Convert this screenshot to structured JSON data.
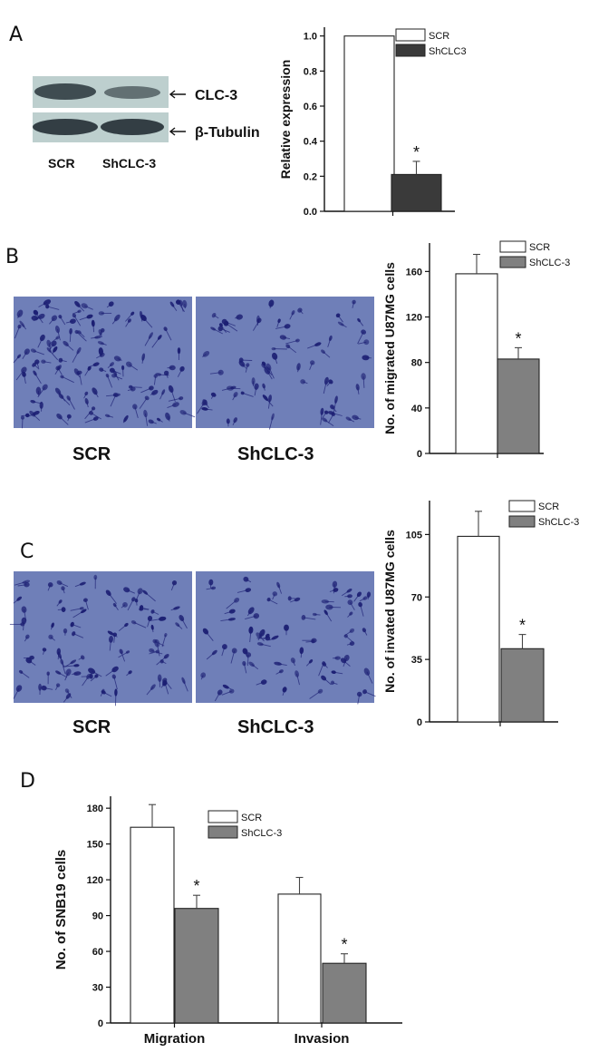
{
  "panel_letters": {
    "a": "A",
    "b": "B",
    "c": "C",
    "d": "D"
  },
  "blot": {
    "band_labels": [
      "CLC-3",
      "β-Tubulin"
    ],
    "lane_labels": [
      "SCR",
      "ShCLC-3"
    ],
    "arrow_glyph": "←"
  },
  "micrographs": {
    "labels": [
      "SCR",
      "ShCLC-3"
    ],
    "bg_color": "#6f7fb8",
    "cell_color": "#1c1f73"
  },
  "significance_marker": "*",
  "colors": {
    "scr": "#ffffff",
    "sh_a": "#3a3a3a",
    "sh": "#808080",
    "axis": "#111111"
  },
  "chart_data": [
    {
      "id": "A",
      "type": "bar",
      "categories": [
        "SCR",
        "ShCLC3"
      ],
      "values": [
        1.0,
        0.21
      ],
      "errors": [
        0,
        0.075
      ],
      "significant": [
        false,
        true
      ],
      "legend": [
        "SCR",
        "ShCLC3"
      ],
      "xlabel": "",
      "ylabel": "Relative expression",
      "ylim": [
        0,
        1.05
      ],
      "yticks": [
        "0.0",
        "0.2",
        "0.4",
        "0.6",
        "0.8",
        "1.0"
      ],
      "legend_position": "top-right"
    },
    {
      "id": "B",
      "type": "bar",
      "categories": [
        "SCR",
        "ShCLC-3"
      ],
      "values": [
        158,
        83
      ],
      "errors": [
        17,
        10
      ],
      "significant": [
        false,
        true
      ],
      "legend": [
        "SCR",
        "ShCLC-3"
      ],
      "xlabel": "",
      "ylabel": "No. of  migrated U87MG cells",
      "ylim": [
        0,
        185
      ],
      "yticks": [
        "0",
        "40",
        "80",
        "120",
        "160"
      ],
      "legend_position": "top-right"
    },
    {
      "id": "C",
      "type": "bar",
      "categories": [
        "SCR",
        "ShCLC-3"
      ],
      "values": [
        104,
        41
      ],
      "errors": [
        14,
        8
      ],
      "significant": [
        false,
        true
      ],
      "legend": [
        "SCR",
        "ShCLC-3"
      ],
      "xlabel": "",
      "ylabel": "No. of  invated U87MG cells",
      "ylim": [
        0,
        124
      ],
      "yticks": [
        "0",
        "35",
        "70",
        "105"
      ],
      "legend_position": "top-right"
    },
    {
      "id": "D",
      "type": "bar",
      "categories": [
        "Migration",
        "Invasion"
      ],
      "series": [
        {
          "name": "SCR",
          "values": [
            164,
            108
          ],
          "errors": [
            19,
            14
          ],
          "significant": [
            false,
            false
          ]
        },
        {
          "name": "ShCLC-3",
          "values": [
            96,
            50
          ],
          "errors": [
            11,
            8
          ],
          "significant": [
            true,
            true
          ]
        }
      ],
      "xlabel": "",
      "ylabel": "No. of SNB19  cells",
      "ylim": [
        0,
        190
      ],
      "yticks": [
        "0",
        "30",
        "60",
        "90",
        "120",
        "150",
        "180"
      ],
      "legend_position": "top-center"
    }
  ]
}
